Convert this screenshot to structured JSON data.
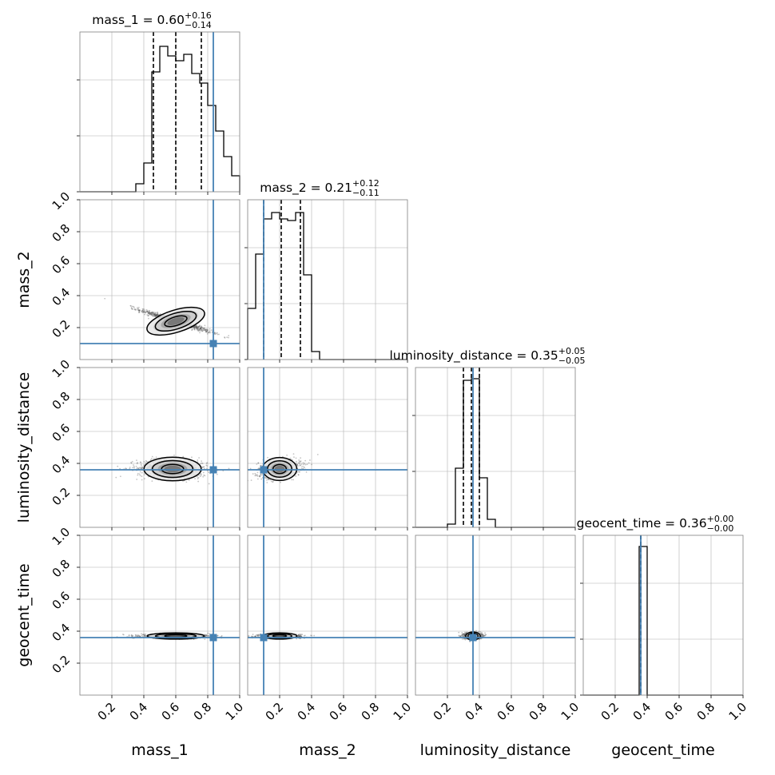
{
  "chart_data": {
    "type": "corner",
    "parameters": [
      "mass_1",
      "mass_2",
      "luminosity_distance",
      "geocent_time"
    ],
    "axis_labels": {
      "x": [
        "mass_1",
        "mass_2",
        "luminosity_distance",
        "geocent_time"
      ],
      "y": [
        "mass_2",
        "luminosity_distance",
        "geocent_time"
      ]
    },
    "titles": [
      {
        "param": "mass_1",
        "text": "mass_1 = 0.60",
        "plus": "+0.16",
        "minus": "−0.14"
      },
      {
        "param": "mass_2",
        "text": "mass_2 = 0.21",
        "plus": "+0.12",
        "minus": "−0.11"
      },
      {
        "param": "luminosity_distance",
        "text": "luminosity_distance = 0.35",
        "plus": "+0.05",
        "minus": "−0.05"
      },
      {
        "param": "geocent_time",
        "text": "geocent_time = 0.36",
        "plus": "+0.00",
        "minus": "−0.00"
      }
    ],
    "xlim": [
      0,
      1
    ],
    "ylim": [
      0,
      1
    ],
    "tick_values": [
      0.2,
      0.4,
      0.6,
      0.8,
      1.0
    ],
    "tick_labels": [
      "0.2",
      "0.4",
      "0.6",
      "0.8",
      "1.0"
    ],
    "grid": true,
    "truths": {
      "mass_1": 0.835,
      "mass_2": 0.1,
      "luminosity_distance": 0.36,
      "geocent_time": 0.36
    },
    "quantiles": {
      "mass_1": [
        0.46,
        0.6,
        0.76
      ],
      "mass_2": [
        0.1,
        0.21,
        0.33
      ],
      "luminosity_distance": [
        0.3,
        0.35,
        0.4
      ],
      "geocent_time": [
        0.36,
        0.36,
        0.36
      ]
    },
    "histograms": [
      {
        "param": "mass_1",
        "bins": [
          0.0,
          0.05,
          0.1,
          0.15,
          0.2,
          0.25,
          0.3,
          0.35,
          0.4,
          0.45,
          0.5,
          0.55,
          0.6,
          0.65,
          0.7,
          0.75,
          0.8,
          0.85,
          0.9,
          0.95,
          1.0
        ],
        "counts": [
          0,
          0,
          0,
          0,
          0,
          0,
          0,
          0.05,
          0.18,
          0.75,
          0.91,
          0.85,
          0.82,
          0.86,
          0.74,
          0.68,
          0.54,
          0.38,
          0.22,
          0.1
        ]
      },
      {
        "param": "mass_2",
        "bins": [
          0.0,
          0.05,
          0.1,
          0.15,
          0.2,
          0.25,
          0.3,
          0.35,
          0.4,
          0.45,
          0.5,
          0.55,
          0.6,
          0.65,
          0.7,
          0.75,
          0.8,
          0.85,
          0.9,
          0.95,
          1.0
        ],
        "counts": [
          0.32,
          0.66,
          0.88,
          0.92,
          0.88,
          0.87,
          0.92,
          0.53,
          0.05,
          0,
          0,
          0,
          0,
          0,
          0,
          0,
          0,
          0,
          0,
          0
        ]
      },
      {
        "param": "luminosity_distance",
        "bins": [
          0.0,
          0.05,
          0.1,
          0.15,
          0.2,
          0.25,
          0.3,
          0.35,
          0.4,
          0.45,
          0.5,
          0.55,
          0.6,
          0.65,
          0.7,
          0.75,
          0.8,
          0.85,
          0.9,
          0.95,
          1.0
        ],
        "counts": [
          0,
          0,
          0,
          0,
          0.02,
          0.37,
          0.92,
          0.93,
          0.31,
          0.05,
          0,
          0,
          0,
          0,
          0,
          0,
          0,
          0,
          0,
          0
        ]
      },
      {
        "param": "geocent_time",
        "bins": [
          0.0,
          0.05,
          0.1,
          0.15,
          0.2,
          0.25,
          0.3,
          0.35,
          0.4,
          0.45,
          0.5,
          0.55,
          0.6,
          0.65,
          0.7,
          0.75,
          0.8,
          0.85,
          0.9,
          0.95,
          1.0
        ],
        "counts": [
          0,
          0,
          0,
          0,
          0,
          0,
          0,
          0.93,
          0,
          0,
          0,
          0,
          0,
          0,
          0,
          0,
          0,
          0,
          0,
          0
        ]
      }
    ],
    "scatter_2d": [
      {
        "x": "mass_1",
        "y": "mass_2",
        "center": [
          0.6,
          0.24
        ],
        "spread": [
          0.2,
          0.035
        ],
        "corr": -0.97
      },
      {
        "x": "mass_1",
        "y": "luminosity_distance",
        "center": [
          0.58,
          0.365
        ],
        "spread": [
          0.2,
          0.03
        ],
        "corr": -0.1
      },
      {
        "x": "mass_2",
        "y": "luminosity_distance",
        "center": [
          0.2,
          0.365
        ],
        "spread": [
          0.12,
          0.03
        ],
        "corr": 0.25
      },
      {
        "x": "mass_1",
        "y": "geocent_time",
        "center": [
          0.6,
          0.37
        ],
        "spread": [
          0.2,
          0.006
        ],
        "corr": 0
      },
      {
        "x": "mass_2",
        "y": "geocent_time",
        "center": [
          0.2,
          0.37
        ],
        "spread": [
          0.12,
          0.006
        ],
        "corr": 0
      },
      {
        "x": "luminosity_distance",
        "y": "geocent_time",
        "center": [
          0.36,
          0.37
        ],
        "spread": [
          0.05,
          0.01
        ],
        "corr": 0
      }
    ],
    "colors": {
      "truth": "#4682b4",
      "hist": "#000000",
      "grid": "#b0b0b0",
      "axes": "#808080"
    }
  }
}
